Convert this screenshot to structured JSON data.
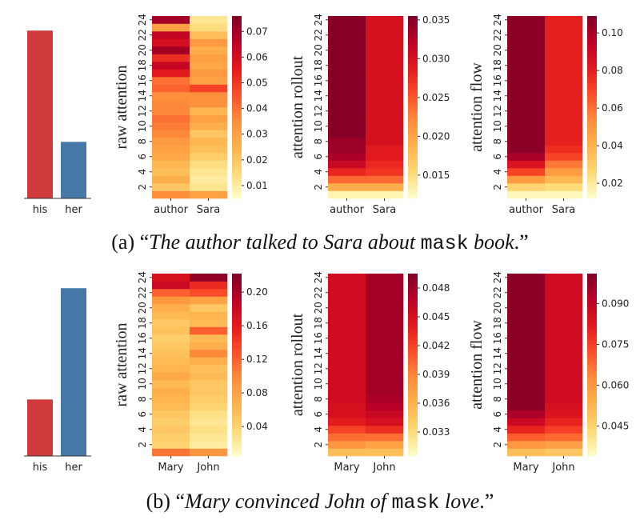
{
  "colorscale": [
    "#ffffcc",
    "#fed976",
    "#feb24c",
    "#fd8d3c",
    "#fc4e2a",
    "#e31a1c",
    "#bd0026",
    "#800026"
  ],
  "bar_colors": {
    "his": "#d03a3a",
    "her": "#4779a8"
  },
  "captions": [
    {
      "prefix": "(a) “",
      "italic1": "The author talked to Sara about",
      "mono": "mask",
      "italic2": "book",
      "suffix": ".”"
    },
    {
      "prefix": "(b) “",
      "italic1": "Mary convinced John of",
      "mono": "mask",
      "italic2": "love",
      "suffix": ".”"
    }
  ],
  "chart_data": [
    {
      "type": "bar",
      "row": 0,
      "categories": [
        "his",
        "her"
      ],
      "values": [
        0.92,
        0.31
      ],
      "ylim": [
        0,
        1
      ]
    },
    {
      "type": "heatmap",
      "row": 0,
      "ylabel": "raw attention",
      "x": [
        "author",
        "Sara"
      ],
      "ytick_labels": [
        "2",
        "4",
        "6",
        "8",
        "10",
        "12",
        "14",
        "16",
        "18",
        "20",
        "22",
        "24"
      ],
      "cbar_ticks": [
        "0.01",
        "0.02",
        "0.03",
        "0.04",
        "0.05",
        "0.06",
        "0.07"
      ],
      "cbar_tick_values": [
        0.01,
        0.02,
        0.03,
        0.04,
        0.05,
        0.06,
        0.07
      ],
      "vmin": 0.005,
      "vmax": 0.076,
      "layers": [
        1,
        2,
        3,
        4,
        5,
        6,
        7,
        8,
        9,
        10,
        11,
        12,
        13,
        14,
        15,
        16,
        17,
        18,
        19,
        20,
        21,
        22,
        23,
        24
      ],
      "values": [
        [
          0.035,
          0.03
        ],
        [
          0.02,
          0.012
        ],
        [
          0.026,
          0.01
        ],
        [
          0.022,
          0.012
        ],
        [
          0.024,
          0.014
        ],
        [
          0.028,
          0.018
        ],
        [
          0.03,
          0.022
        ],
        [
          0.032,
          0.024
        ],
        [
          0.036,
          0.02
        ],
        [
          0.038,
          0.026
        ],
        [
          0.04,
          0.03
        ],
        [
          0.036,
          0.024
        ],
        [
          0.036,
          0.034
        ],
        [
          0.035,
          0.035
        ],
        [
          0.042,
          0.048
        ],
        [
          0.04,
          0.03
        ],
        [
          0.056,
          0.032
        ],
        [
          0.064,
          0.028
        ],
        [
          0.052,
          0.03
        ],
        [
          0.07,
          0.026
        ],
        [
          0.06,
          0.032
        ],
        [
          0.064,
          0.022
        ],
        [
          0.03,
          0.014
        ],
        [
          0.07,
          0.012
        ]
      ]
    },
    {
      "type": "heatmap",
      "row": 0,
      "ylabel": "attention rollout",
      "x": [
        "author",
        "Sara"
      ],
      "ytick_labels": [
        "2",
        "4",
        "6",
        "8",
        "10",
        "12",
        "14",
        "16",
        "18",
        "20",
        "22",
        "24"
      ],
      "cbar_ticks": [
        "0.015",
        "0.020",
        "0.025",
        "0.030",
        "0.035"
      ],
      "cbar_tick_values": [
        0.015,
        0.02,
        0.025,
        0.03,
        0.035
      ],
      "vmin": 0.012,
      "vmax": 0.0355,
      "layers": [
        1,
        2,
        3,
        4,
        5,
        6,
        7,
        8,
        9,
        10,
        11,
        12,
        13,
        14,
        15,
        16,
        17,
        18,
        19,
        20,
        21,
        22,
        23,
        24
      ],
      "values": [
        [
          0.013,
          0.013
        ],
        [
          0.019,
          0.019
        ],
        [
          0.024,
          0.024
        ],
        [
          0.028,
          0.027
        ],
        [
          0.031,
          0.028
        ],
        [
          0.033,
          0.029
        ],
        [
          0.034,
          0.029
        ],
        [
          0.034,
          0.03
        ],
        [
          0.035,
          0.03
        ],
        [
          0.035,
          0.03
        ],
        [
          0.035,
          0.03
        ],
        [
          0.035,
          0.03
        ],
        [
          0.035,
          0.03
        ],
        [
          0.035,
          0.03
        ],
        [
          0.035,
          0.03
        ],
        [
          0.035,
          0.03
        ],
        [
          0.035,
          0.03
        ],
        [
          0.035,
          0.03
        ],
        [
          0.035,
          0.03
        ],
        [
          0.035,
          0.03
        ],
        [
          0.035,
          0.03
        ],
        [
          0.035,
          0.03
        ],
        [
          0.035,
          0.03
        ],
        [
          0.035,
          0.03
        ]
      ]
    },
    {
      "type": "heatmap",
      "row": 0,
      "ylabel": "attention flow",
      "x": [
        "author",
        "Sara"
      ],
      "ytick_labels": [
        "2",
        "4",
        "6",
        "8",
        "10",
        "12",
        "14",
        "16",
        "18",
        "20",
        "22",
        "24"
      ],
      "cbar_ticks": [
        "0.02",
        "0.04",
        "0.06",
        "0.08",
        "0.10"
      ],
      "cbar_tick_values": [
        0.02,
        0.04,
        0.06,
        0.08,
        0.1
      ],
      "vmin": 0.012,
      "vmax": 0.109,
      "layers": [
        1,
        2,
        3,
        4,
        5,
        6,
        7,
        8,
        9,
        10,
        11,
        12,
        13,
        14,
        15,
        16,
        17,
        18,
        19,
        20,
        21,
        22,
        23,
        24
      ],
      "values": [
        [
          0.015,
          0.015
        ],
        [
          0.028,
          0.025
        ],
        [
          0.048,
          0.038
        ],
        [
          0.07,
          0.048
        ],
        [
          0.085,
          0.058
        ],
        [
          0.1,
          0.07
        ],
        [
          0.106,
          0.076
        ],
        [
          0.106,
          0.08
        ],
        [
          0.106,
          0.08
        ],
        [
          0.106,
          0.08
        ],
        [
          0.106,
          0.08
        ],
        [
          0.106,
          0.08
        ],
        [
          0.106,
          0.08
        ],
        [
          0.106,
          0.08
        ],
        [
          0.106,
          0.08
        ],
        [
          0.106,
          0.08
        ],
        [
          0.106,
          0.08
        ],
        [
          0.106,
          0.08
        ],
        [
          0.106,
          0.08
        ],
        [
          0.106,
          0.08
        ],
        [
          0.106,
          0.08
        ],
        [
          0.106,
          0.08
        ],
        [
          0.106,
          0.08
        ],
        [
          0.106,
          0.08
        ]
      ]
    },
    {
      "type": "bar",
      "row": 1,
      "categories": [
        "his",
        "her"
      ],
      "values": [
        0.31,
        0.92
      ],
      "ylim": [
        0,
        1
      ]
    },
    {
      "type": "heatmap",
      "row": 1,
      "ylabel": "raw attention",
      "x": [
        "Mary",
        "John"
      ],
      "ytick_labels": [
        "2",
        "4",
        "6",
        "8",
        "10",
        "12",
        "14",
        "16",
        "18",
        "20",
        "22",
        "24"
      ],
      "cbar_ticks": [
        "0.04",
        "0.08",
        "0.12",
        "0.16",
        "0.20"
      ],
      "cbar_tick_values": [
        0.04,
        0.08,
        0.12,
        0.16,
        0.2
      ],
      "vmin": 0.005,
      "vmax": 0.222,
      "layers": [
        1,
        2,
        3,
        4,
        5,
        6,
        7,
        8,
        9,
        10,
        11,
        12,
        13,
        14,
        15,
        16,
        17,
        18,
        19,
        20,
        21,
        22,
        23,
        24
      ],
      "values": [
        [
          0.11,
          0.09
        ],
        [
          0.04,
          0.02
        ],
        [
          0.045,
          0.025
        ],
        [
          0.05,
          0.03
        ],
        [
          0.045,
          0.025
        ],
        [
          0.05,
          0.03
        ],
        [
          0.06,
          0.04
        ],
        [
          0.065,
          0.045
        ],
        [
          0.07,
          0.05
        ],
        [
          0.06,
          0.05
        ],
        [
          0.075,
          0.06
        ],
        [
          0.065,
          0.055
        ],
        [
          0.06,
          0.07
        ],
        [
          0.055,
          0.1
        ],
        [
          0.05,
          0.07
        ],
        [
          0.045,
          0.06
        ],
        [
          0.055,
          0.12
        ],
        [
          0.05,
          0.06
        ],
        [
          0.06,
          0.065
        ],
        [
          0.07,
          0.05
        ],
        [
          0.09,
          0.08
        ],
        [
          0.12,
          0.13
        ],
        [
          0.18,
          0.15
        ],
        [
          0.17,
          0.215
        ]
      ]
    },
    {
      "type": "heatmap",
      "row": 1,
      "ylabel": "attention rollout",
      "x": [
        "Mary",
        "John"
      ],
      "ytick_labels": [
        "2",
        "4",
        "6",
        "8",
        "10",
        "12",
        "14",
        "16",
        "18",
        "20",
        "22",
        "24"
      ],
      "cbar_ticks": [
        "0.033",
        "0.036",
        "0.039",
        "0.042",
        "0.045",
        "0.048"
      ],
      "cbar_tick_values": [
        0.033,
        0.036,
        0.039,
        0.042,
        0.045,
        0.048
      ],
      "vmin": 0.0305,
      "vmax": 0.0495,
      "layers": [
        1,
        2,
        3,
        4,
        5,
        6,
        7,
        8,
        9,
        10,
        11,
        12,
        13,
        14,
        15,
        16,
        17,
        18,
        19,
        20,
        21,
        22,
        23,
        24
      ],
      "values": [
        [
          0.035,
          0.035
        ],
        [
          0.038,
          0.037
        ],
        [
          0.04,
          0.04
        ],
        [
          0.042,
          0.043
        ],
        [
          0.044,
          0.045
        ],
        [
          0.045,
          0.046
        ],
        [
          0.045,
          0.047
        ],
        [
          0.0455,
          0.0475
        ],
        [
          0.0455,
          0.048
        ],
        [
          0.0455,
          0.048
        ],
        [
          0.0455,
          0.048
        ],
        [
          0.0455,
          0.048
        ],
        [
          0.0455,
          0.048
        ],
        [
          0.0455,
          0.048
        ],
        [
          0.0455,
          0.048
        ],
        [
          0.0455,
          0.048
        ],
        [
          0.0455,
          0.048
        ],
        [
          0.0455,
          0.048
        ],
        [
          0.0455,
          0.048
        ],
        [
          0.0455,
          0.048
        ],
        [
          0.0455,
          0.048
        ],
        [
          0.0455,
          0.048
        ],
        [
          0.0455,
          0.048
        ],
        [
          0.0455,
          0.048
        ]
      ]
    },
    {
      "type": "heatmap",
      "row": 1,
      "ylabel": "attention flow",
      "x": [
        "Mary",
        "John"
      ],
      "ytick_labels": [
        "2",
        "4",
        "6",
        "8",
        "10",
        "12",
        "14",
        "16",
        "18",
        "20",
        "22",
        "24"
      ],
      "cbar_ticks": [
        "0.045",
        "0.060",
        "0.075",
        "0.090"
      ],
      "cbar_tick_values": [
        0.045,
        0.06,
        0.075,
        0.09
      ],
      "vmin": 0.034,
      "vmax": 0.101,
      "layers": [
        1,
        2,
        3,
        4,
        5,
        6,
        7,
        8,
        9,
        10,
        11,
        12,
        13,
        14,
        15,
        16,
        17,
        18,
        19,
        20,
        21,
        22,
        23,
        24
      ],
      "values": [
        [
          0.05,
          0.048
        ],
        [
          0.06,
          0.058
        ],
        [
          0.07,
          0.068
        ],
        [
          0.08,
          0.075
        ],
        [
          0.088,
          0.08
        ],
        [
          0.094,
          0.084
        ],
        [
          0.099,
          0.086
        ],
        [
          0.099,
          0.087
        ],
        [
          0.099,
          0.087
        ],
        [
          0.099,
          0.087
        ],
        [
          0.099,
          0.087
        ],
        [
          0.099,
          0.087
        ],
        [
          0.099,
          0.087
        ],
        [
          0.099,
          0.087
        ],
        [
          0.099,
          0.087
        ],
        [
          0.099,
          0.087
        ],
        [
          0.099,
          0.087
        ],
        [
          0.099,
          0.087
        ],
        [
          0.099,
          0.087
        ],
        [
          0.099,
          0.087
        ],
        [
          0.099,
          0.087
        ],
        [
          0.099,
          0.087
        ],
        [
          0.099,
          0.087
        ],
        [
          0.099,
          0.087
        ]
      ]
    }
  ]
}
